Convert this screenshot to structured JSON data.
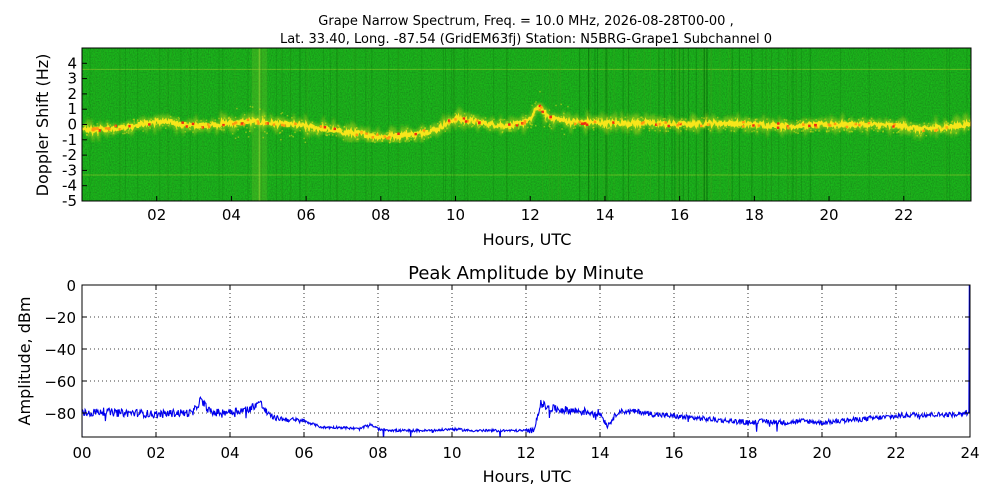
{
  "figure": {
    "title_line1": "Grape Narrow Spectrum, Freq. = 10.0 MHz, 2026-08-28T00-00 ,",
    "title_line2": "Lat.  33.40, Long. -87.54 (GridEM63fj) Station: N5BRG-Grape1 Subchannel 0"
  },
  "colors": {
    "spectrogram_bg": "#0b7a0b",
    "spectrogram_noise_dark": "#045a04",
    "spectrogram_noise_light": "#3aa21a",
    "trace_yellow": "#ffe81a",
    "trace_orange": "#ff9a10",
    "trace_red": "#ee2a10",
    "amplitude_line": "#0000ee"
  },
  "chart_data": [
    {
      "type": "heatmap",
      "xlabel": "Hours, UTC",
      "ylabel": "Doppler Shift (Hz)",
      "xlim": [
        0,
        23.8
      ],
      "ylim": [
        -5,
        5
      ],
      "xticks": [
        "02",
        "04",
        "06",
        "08",
        "10",
        "12",
        "14",
        "16",
        "18",
        "20",
        "22"
      ],
      "xtick_values": [
        2,
        4,
        6,
        8,
        10,
        12,
        14,
        16,
        18,
        20,
        22
      ],
      "yticks": [
        "4",
        "3",
        "2",
        "1",
        "0",
        "-1",
        "-2",
        "-3",
        "-4",
        "-5"
      ],
      "ytick_values": [
        4,
        3,
        2,
        1,
        0,
        -1,
        -2,
        -3,
        -4,
        -5
      ],
      "carrier_trace": {
        "x": [
          0,
          0.5,
          1,
          1.5,
          2,
          2.5,
          3,
          3.5,
          4,
          4.5,
          5,
          5.5,
          6,
          6.5,
          7,
          7.5,
          8,
          8.5,
          9,
          9.5,
          10,
          10.5,
          11,
          11.5,
          12,
          12.2,
          12.5,
          13,
          14,
          15,
          16,
          17,
          18,
          19,
          20,
          21,
          22,
          22.5,
          23,
          23.8
        ],
        "y": [
          -0.4,
          -0.3,
          -0.2,
          0,
          0.2,
          0.1,
          -0.1,
          0,
          0.1,
          0.2,
          0.1,
          0,
          -0.1,
          -0.3,
          -0.5,
          -0.6,
          -0.8,
          -0.7,
          -0.6,
          -0.3,
          0.4,
          0.2,
          0.0,
          -0.1,
          0.3,
          1.2,
          0.5,
          0.2,
          0.1,
          0.1,
          0.0,
          0.1,
          0.0,
          -0.1,
          0.0,
          0.0,
          -0.1,
          -0.3,
          -0.2,
          0.0
        ]
      }
    },
    {
      "type": "line",
      "title": "Peak Amplitude by Minute",
      "xlabel": "Hours, UTC",
      "ylabel": "Amplitude, dBm",
      "xlim": [
        0,
        24
      ],
      "ylim": [
        -95,
        0
      ],
      "grid": true,
      "xticks": [
        "00",
        "02",
        "04",
        "06",
        "08",
        "10",
        "12",
        "14",
        "16",
        "18",
        "20",
        "22",
        "24"
      ],
      "xtick_values": [
        0,
        2,
        4,
        6,
        8,
        10,
        12,
        14,
        16,
        18,
        20,
        22,
        24
      ],
      "yticks": [
        "0",
        "−20",
        "−40",
        "−60",
        "−80"
      ],
      "ytick_values": [
        0,
        -20,
        -40,
        -60,
        -80
      ],
      "series": [
        {
          "x": [
            0,
            0.25,
            0.5,
            1,
            1.5,
            2,
            2.5,
            3,
            3.2,
            3.5,
            4,
            4.5,
            4.8,
            5,
            5.2,
            5.5,
            6,
            6.5,
            7,
            7.5,
            7.8,
            8,
            8.5,
            9,
            9.5,
            10,
            10.5,
            11,
            11.5,
            12,
            12.2,
            12.4,
            12.6,
            13,
            13.5,
            14,
            14.2,
            14.5,
            15,
            15.5,
            16,
            16.5,
            17,
            17.5,
            18,
            18.5,
            19,
            19.5,
            20,
            20.5,
            21,
            21.5,
            22,
            22.5,
            23,
            23.5,
            23.9
          ],
          "y": [
            -80,
            -80,
            -79,
            -80,
            -80,
            -81,
            -80,
            -80,
            -72,
            -80,
            -79,
            -78,
            -73,
            -80,
            -83,
            -84,
            -85,
            -89,
            -89,
            -90,
            -87,
            -90,
            -91,
            -91,
            -91,
            -90,
            -91,
            -91,
            -91,
            -91,
            -91,
            -74,
            -77,
            -78,
            -79,
            -80,
            -88,
            -79,
            -79,
            -81,
            -82,
            -83,
            -84,
            -85,
            -86,
            -85,
            -86,
            -85,
            -86,
            -85,
            -84,
            -83,
            -82,
            -81,
            -81,
            -81,
            -80
          ]
        }
      ]
    }
  ]
}
